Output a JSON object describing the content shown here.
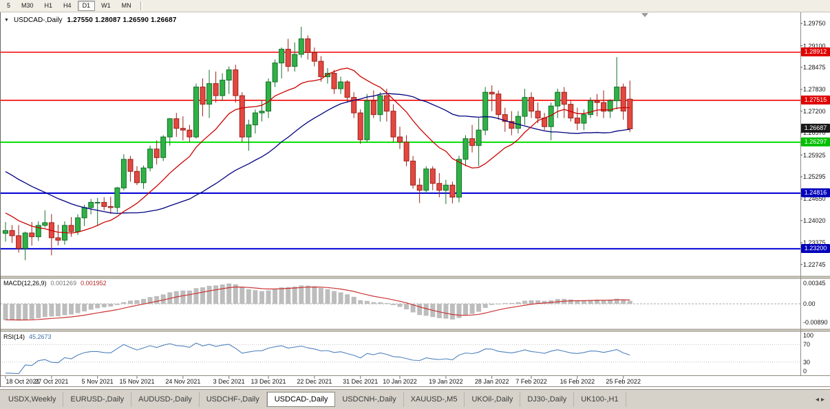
{
  "toolbar": {
    "timeframes": [
      {
        "label": "5",
        "active": false
      },
      {
        "label": "M30",
        "active": false
      },
      {
        "label": "H1",
        "active": false
      },
      {
        "label": "H4",
        "active": false
      },
      {
        "label": "D1",
        "active": true
      },
      {
        "label": "W1",
        "active": false
      },
      {
        "label": "MN",
        "active": false
      }
    ]
  },
  "chart": {
    "type": "candlestick",
    "symbol_period": "USDCAD-,Daily",
    "dropdown_icon": "▼",
    "ohlc_text": "1.27550 1.28087 1.26590 1.26687",
    "open": "1.27550",
    "high": "1.28087",
    "low": "1.26590",
    "close": "1.26687",
    "price_axis_ticks": [
      "1.29750",
      "1.29100",
      "1.28475",
      "1.27830",
      "1.27200",
      "1.26570",
      "1.25925",
      "1.25295",
      "1.24650",
      "1.24020",
      "1.23375",
      "1.22745"
    ],
    "levels": [
      {
        "price": 1.28912,
        "label": "1.28912",
        "line": "#f40000",
        "tag": "#e00000",
        "width": 1.6
      },
      {
        "price": 1.27515,
        "label": "1.27515",
        "line": "#f40000",
        "tag": "#e00000",
        "width": 1.6
      },
      {
        "price": 1.26297,
        "label": "1.26297",
        "line": "#00e000",
        "tag": "#00c000",
        "width": 2
      },
      {
        "price": 1.24816,
        "label": "1.24816",
        "line": "#0000d8",
        "tag": "#0000bb",
        "width": 2
      },
      {
        "price": 1.232,
        "label": "1.23200",
        "line": "#0000d8",
        "tag": "#0000bb",
        "width": 2
      }
    ],
    "current_price": {
      "value": 1.26687,
      "label": "1.26687",
      "tag": "#1a1a1a"
    },
    "x_axis": [
      {
        "label": "18 Oct 2021",
        "index": 0
      },
      {
        "label": "27 Oct 2021",
        "index": 7
      },
      {
        "label": "5 Nov 2021",
        "index": 14
      },
      {
        "label": "15 Nov 2021",
        "index": 20
      },
      {
        "label": "24 Nov 2021",
        "index": 27
      },
      {
        "label": "3 Dec 2021",
        "index": 34
      },
      {
        "label": "13 Dec 2021",
        "index": 40
      },
      {
        "label": "22 Dec 2021",
        "index": 47
      },
      {
        "label": "31 Dec 2021",
        "index": 54
      },
      {
        "label": "10 Jan 2022",
        "index": 60
      },
      {
        "label": "19 Jan 2022",
        "index": 67
      },
      {
        "label": "28 Jan 2022",
        "index": 74
      },
      {
        "label": "7 Feb 2022",
        "index": 80
      },
      {
        "label": "16 Feb 2022",
        "index": 87
      },
      {
        "label": "25 Feb 2022",
        "index": 94
      }
    ],
    "candles": [
      [
        1.2365,
        1.2398,
        1.2341,
        1.2373
      ],
      [
        1.2373,
        1.2389,
        1.2337,
        1.2358
      ],
      [
        1.2358,
        1.2389,
        1.2309,
        1.2321
      ],
      [
        1.2321,
        1.237,
        1.2287,
        1.2366
      ],
      [
        1.2366,
        1.2398,
        1.2329,
        1.2355
      ],
      [
        1.2355,
        1.24,
        1.2343,
        1.2388
      ],
      [
        1.2388,
        1.2432,
        1.2382,
        1.2396
      ],
      [
        1.2396,
        1.2421,
        1.2301,
        1.2352
      ],
      [
        1.2352,
        1.239,
        1.233,
        1.2345
      ],
      [
        1.2345,
        1.24,
        1.2332,
        1.2388
      ],
      [
        1.2388,
        1.2412,
        1.2355,
        1.237
      ],
      [
        1.237,
        1.242,
        1.236,
        1.241
      ],
      [
        1.241,
        1.2448,
        1.2386,
        1.244
      ],
      [
        1.244,
        1.2465,
        1.242,
        1.2455
      ],
      [
        1.2455,
        1.2468,
        1.2388,
        1.2455
      ],
      [
        1.2455,
        1.247,
        1.2432,
        1.2443
      ],
      [
        1.2443,
        1.2471,
        1.2422,
        1.244
      ],
      [
        1.244,
        1.25,
        1.2425,
        1.2497
      ],
      [
        1.2497,
        1.2595,
        1.249,
        1.258
      ],
      [
        1.258,
        1.259,
        1.2515,
        1.2545
      ],
      [
        1.2545,
        1.256,
        1.2505,
        1.2512
      ],
      [
        1.2512,
        1.2562,
        1.2494,
        1.2555
      ],
      [
        1.2555,
        1.262,
        1.2545,
        1.261
      ],
      [
        1.261,
        1.2635,
        1.2565,
        1.2585
      ],
      [
        1.2585,
        1.265,
        1.2575,
        1.2645
      ],
      [
        1.2645,
        1.27,
        1.262,
        1.2698
      ],
      [
        1.2698,
        1.2715,
        1.2645,
        1.267
      ],
      [
        1.267,
        1.2705,
        1.2635,
        1.2665
      ],
      [
        1.2665,
        1.268,
        1.263,
        1.2645
      ],
      [
        1.2645,
        1.28,
        1.264,
        1.279
      ],
      [
        1.279,
        1.2815,
        1.2705,
        1.274
      ],
      [
        1.274,
        1.284,
        1.27,
        1.28
      ],
      [
        1.28,
        1.2835,
        1.2745,
        1.2765
      ],
      [
        1.2765,
        1.283,
        1.275,
        1.281
      ],
      [
        1.281,
        1.285,
        1.277,
        1.284
      ],
      [
        1.284,
        1.2855,
        1.2745,
        1.2765
      ],
      [
        1.2765,
        1.2775,
        1.263,
        1.2645
      ],
      [
        1.2645,
        1.2695,
        1.2605,
        1.268
      ],
      [
        1.268,
        1.2725,
        1.2655,
        1.2715
      ],
      [
        1.2715,
        1.275,
        1.269,
        1.272
      ],
      [
        1.272,
        1.2815,
        1.27,
        1.2805
      ],
      [
        1.2805,
        1.287,
        1.279,
        1.286
      ],
      [
        1.286,
        1.2905,
        1.2815,
        1.29
      ],
      [
        1.29,
        1.293,
        1.2835,
        1.285
      ],
      [
        1.285,
        1.292,
        1.2835,
        1.2885
      ],
      [
        1.2885,
        1.2965,
        1.2875,
        1.293
      ],
      [
        1.293,
        1.294,
        1.287,
        1.289
      ],
      [
        1.289,
        1.2905,
        1.285,
        1.2865
      ],
      [
        1.2865,
        1.288,
        1.2805,
        1.282
      ],
      [
        1.282,
        1.2845,
        1.28,
        1.283
      ],
      [
        1.283,
        1.284,
        1.277,
        1.2785
      ],
      [
        1.2785,
        1.282,
        1.277,
        1.2805
      ],
      [
        1.2805,
        1.281,
        1.2745,
        1.276
      ],
      [
        1.276,
        1.2775,
        1.27,
        1.2715
      ],
      [
        1.2715,
        1.2725,
        1.2625,
        1.2637
      ],
      [
        1.2637,
        1.277,
        1.263,
        1.275
      ],
      [
        1.275,
        1.278,
        1.27,
        1.271
      ],
      [
        1.271,
        1.2775,
        1.269,
        1.2765
      ],
      [
        1.2765,
        1.2785,
        1.269,
        1.272
      ],
      [
        1.272,
        1.274,
        1.263,
        1.2645
      ],
      [
        1.2645,
        1.2675,
        1.261,
        1.263
      ],
      [
        1.263,
        1.265,
        1.256,
        1.2575
      ],
      [
        1.2575,
        1.259,
        1.2495,
        1.2505
      ],
      [
        1.2505,
        1.2525,
        1.2453,
        1.249
      ],
      [
        1.249,
        1.256,
        1.248,
        1.2552
      ],
      [
        1.2552,
        1.256,
        1.249,
        1.251
      ],
      [
        1.251,
        1.254,
        1.247,
        1.249
      ],
      [
        1.249,
        1.252,
        1.245,
        1.2505
      ],
      [
        1.2505,
        1.2515,
        1.2452,
        1.247
      ],
      [
        1.247,
        1.259,
        1.2455,
        1.258
      ],
      [
        1.258,
        1.265,
        1.256,
        1.264
      ],
      [
        1.264,
        1.268,
        1.26,
        1.262
      ],
      [
        1.262,
        1.27,
        1.256,
        1.2665
      ],
      [
        1.2665,
        1.279,
        1.265,
        1.2775
      ],
      [
        1.2775,
        1.2795,
        1.272,
        1.277
      ],
      [
        1.277,
        1.278,
        1.2695,
        1.271
      ],
      [
        1.271,
        1.273,
        1.266,
        1.269
      ],
      [
        1.269,
        1.272,
        1.265,
        1.267
      ],
      [
        1.267,
        1.272,
        1.2655,
        1.2705
      ],
      [
        1.2705,
        1.2785,
        1.268,
        1.276
      ],
      [
        1.276,
        1.2775,
        1.27,
        1.272
      ],
      [
        1.272,
        1.2745,
        1.2685,
        1.27
      ],
      [
        1.27,
        1.2715,
        1.2665,
        1.2675
      ],
      [
        1.2675,
        1.2745,
        1.2635,
        1.2735
      ],
      [
        1.2735,
        1.2785,
        1.27,
        1.2775
      ],
      [
        1.2775,
        1.279,
        1.27,
        1.274
      ],
      [
        1.274,
        1.275,
        1.269,
        1.27
      ],
      [
        1.27,
        1.273,
        1.2665,
        1.2685
      ],
      [
        1.2685,
        1.2725,
        1.2665,
        1.271
      ],
      [
        1.271,
        1.276,
        1.27,
        1.275
      ],
      [
        1.275,
        1.277,
        1.2705,
        1.2745
      ],
      [
        1.2745,
        1.278,
        1.27,
        1.272
      ],
      [
        1.272,
        1.2755,
        1.27,
        1.275
      ],
      [
        1.275,
        1.2877,
        1.2725,
        1.279
      ],
      [
        1.279,
        1.28,
        1.2695,
        1.272
      ],
      [
        1.2755,
        1.28087,
        1.2659,
        1.26687
      ]
    ]
  },
  "indicators": {
    "macd": {
      "label": "MACD(12,26,9)",
      "value_main": "0.001269",
      "value_signal": "0.001952",
      "axis": [
        "0.00345",
        "0.00",
        "-0.00890"
      ],
      "fast": 12,
      "slow": 26,
      "signal": 9
    },
    "rsi": {
      "label": "RSI(14)",
      "value": "45.2673",
      "axis": [
        "100",
        "70",
        "30",
        "0"
      ],
      "period": 14
    }
  },
  "tabs": {
    "items": [
      {
        "label": "USDX,Weekly",
        "active": false
      },
      {
        "label": "EURUSD-,Daily",
        "active": false
      },
      {
        "label": "AUDUSD-,Daily",
        "active": false
      },
      {
        "label": "USDCHF-,Daily",
        "active": false
      },
      {
        "label": "USDCAD-,Daily",
        "active": true
      },
      {
        "label": "USDCNH-,Daily",
        "active": false
      },
      {
        "label": "XAUUSD-,M5",
        "active": false
      },
      {
        "label": "UKOil-,Daily",
        "active": false
      },
      {
        "label": "DJ30-,Daily",
        "active": false
      },
      {
        "label": "UK100-,H1",
        "active": false
      }
    ],
    "scroll_left_icon": "◂",
    "scroll_right_icon": "▸"
  },
  "colors": {
    "up": "#30b146",
    "up_border": "#156f2a",
    "down": "#e34840",
    "down_border": "#99201a",
    "ma_fast": "#cc0000",
    "ma_slow": "#00007f",
    "macd_hist": "#bdbdbd",
    "macd_signal": "#cc3333",
    "rsi_line": "#4f81bd",
    "axis_line": "#8f8b82",
    "separator": "#d4d0c7"
  }
}
